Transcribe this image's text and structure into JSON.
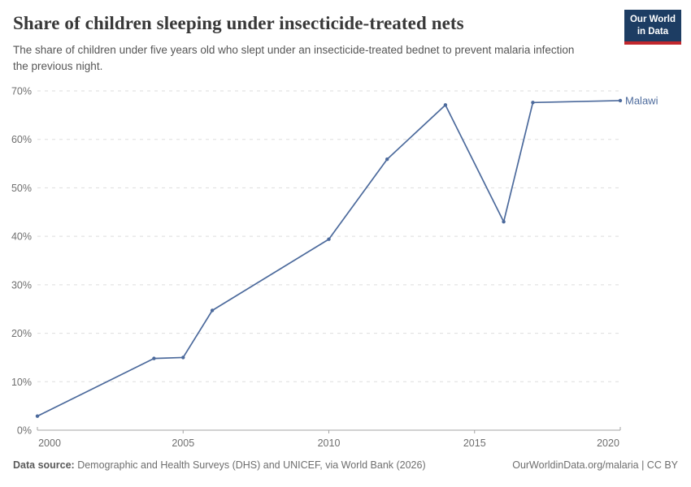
{
  "header": {
    "title": "Share of children sleeping under insecticide-treated nets",
    "subtitle": "The share of children under five years old who slept under an insecticide-treated bednet to prevent malaria infection the previous night.",
    "logo": {
      "line1": "Our World",
      "line2": "in Data",
      "bg_color": "#1d3d63",
      "accent_color": "#c1272d"
    }
  },
  "chart_data": {
    "type": "line",
    "title": "Share of children sleeping under insecticide-treated nets",
    "xlabel": "",
    "ylabel": "",
    "xlim": [
      2000,
      2020
    ],
    "ylim": [
      0,
      70
    ],
    "x_ticks": [
      2000,
      2005,
      2010,
      2015,
      2020
    ],
    "y_ticks": [
      0,
      10,
      20,
      30,
      40,
      50,
      60,
      70
    ],
    "y_tick_suffix": "%",
    "grid": "horizontal-dashed",
    "legend_position": "end-of-line-label",
    "series": [
      {
        "name": "Malawi",
        "color": "#4c6a9c",
        "points": [
          [
            2000,
            2.9
          ],
          [
            2004,
            14.8
          ],
          [
            2005,
            15
          ],
          [
            2006,
            24.7
          ],
          [
            2010,
            39.4
          ],
          [
            2012,
            55.9
          ],
          [
            2014,
            67.1
          ],
          [
            2016,
            43
          ],
          [
            2017,
            67.6
          ],
          [
            2020,
            68
          ]
        ]
      }
    ]
  },
  "footer": {
    "source_label": "Data source:",
    "source_text": " Demographic and Health Surveys (DHS) and UNICEF, via World Bank (2026)",
    "attribution": "OurWorldinData.org/malaria | CC BY"
  },
  "colors": {
    "grid": "#dddddd",
    "axis_line": "#a3a3a3",
    "tick_text": "#6e6e6e",
    "title_text": "#383838"
  }
}
